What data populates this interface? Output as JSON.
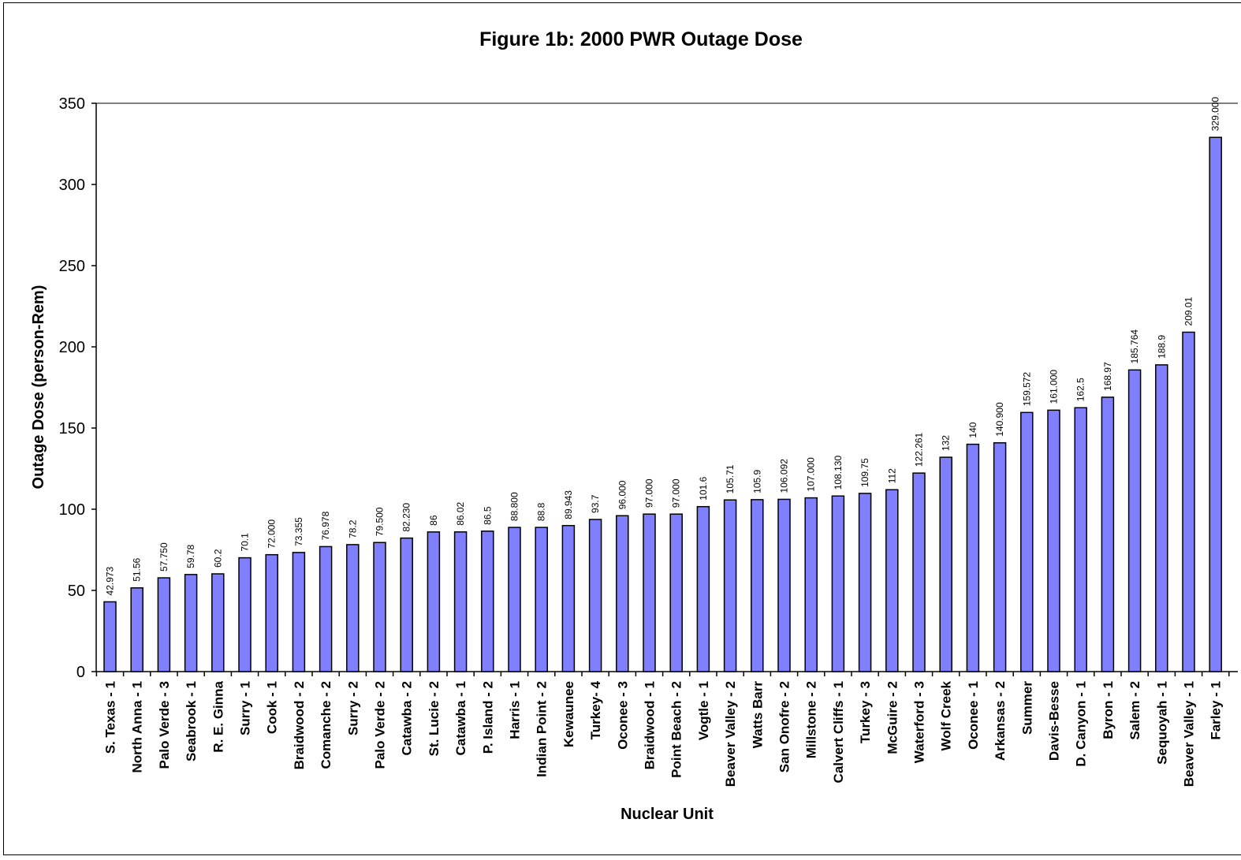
{
  "chart_data": {
    "type": "bar",
    "title": "Figure 1b: 2000 PWR Outage Dose",
    "xlabel": "Nuclear Unit",
    "ylabel": "Outage Dose (person-Rem)",
    "ylim": [
      0,
      350
    ],
    "yticks": [
      "0",
      "50",
      "100",
      "150",
      "200",
      "250",
      "300",
      "350"
    ],
    "bar_color": "#8080ff",
    "grid": false,
    "legend": "none",
    "categories": [
      "S. Texas - 1",
      "North Anna - 1",
      "Palo Verde - 3",
      "Seabrook - 1",
      "R. E. Ginna",
      "Surry - 1",
      "Cook - 1",
      "Braidwood - 2",
      "Comanche - 2",
      "Surry - 2",
      "Palo Verde - 2",
      "Catawba - 2",
      "St. Lucie - 2",
      "Catawba - 1",
      "P. Island - 2",
      "Harris - 1",
      "Indian Point - 2",
      "Kewaunee",
      "Turkey- 4",
      "Oconee - 3",
      "Braidwood - 1",
      "Point Beach - 2",
      "Vogtle - 1",
      "Beaver Valley - 2",
      "Watts Barr",
      "San Onofre - 2",
      "Millstone - 2",
      "Calvert Cliffs - 1",
      "Turkey - 3",
      "McGuire - 2",
      "Waterford - 3",
      "Wolf Creek",
      "Oconee - 1",
      "Arkansas - 2",
      "Summer",
      "Davis-Besse",
      "D. Canyon - 1",
      "Byron - 1",
      "Salem - 2",
      "Sequoyah - 1",
      "Beaver Valley - 1",
      "Farley - 1"
    ],
    "values": [
      42.973,
      51.56,
      57.75,
      59.78,
      60.2,
      70.1,
      72.0,
      73.355,
      76.978,
      78.2,
      79.5,
      82.23,
      86,
      86.02,
      86.5,
      88.8,
      88.8,
      89.943,
      93.7,
      96.0,
      97.0,
      97.0,
      101.6,
      105.71,
      105.9,
      106.092,
      107.0,
      108.13,
      109.75,
      112,
      122.261,
      132,
      140,
      140.9,
      159.572,
      161.0,
      162.5,
      168.97,
      185.764,
      188.9,
      209.01,
      329.0
    ],
    "value_labels": [
      "42.973",
      "51.56",
      "57.750",
      "59.78",
      "60.2",
      "70.1",
      "72.000",
      "73.355",
      "76.978",
      "78.2",
      "79.500",
      "82.230",
      "86",
      "86.02",
      "86.5",
      "88.800",
      "88.8",
      "89.943",
      "93.7",
      "96.000",
      "97.000",
      "97.000",
      "101.6",
      "105.71",
      "105.9",
      "106.092",
      "107.000",
      "108.130",
      "109.75",
      "112",
      "122.261",
      "132",
      "140",
      "140.900",
      "159.572",
      "161.000",
      "162.5",
      "168.97",
      "185.764",
      "188.9",
      "209.01",
      "329.000"
    ]
  }
}
